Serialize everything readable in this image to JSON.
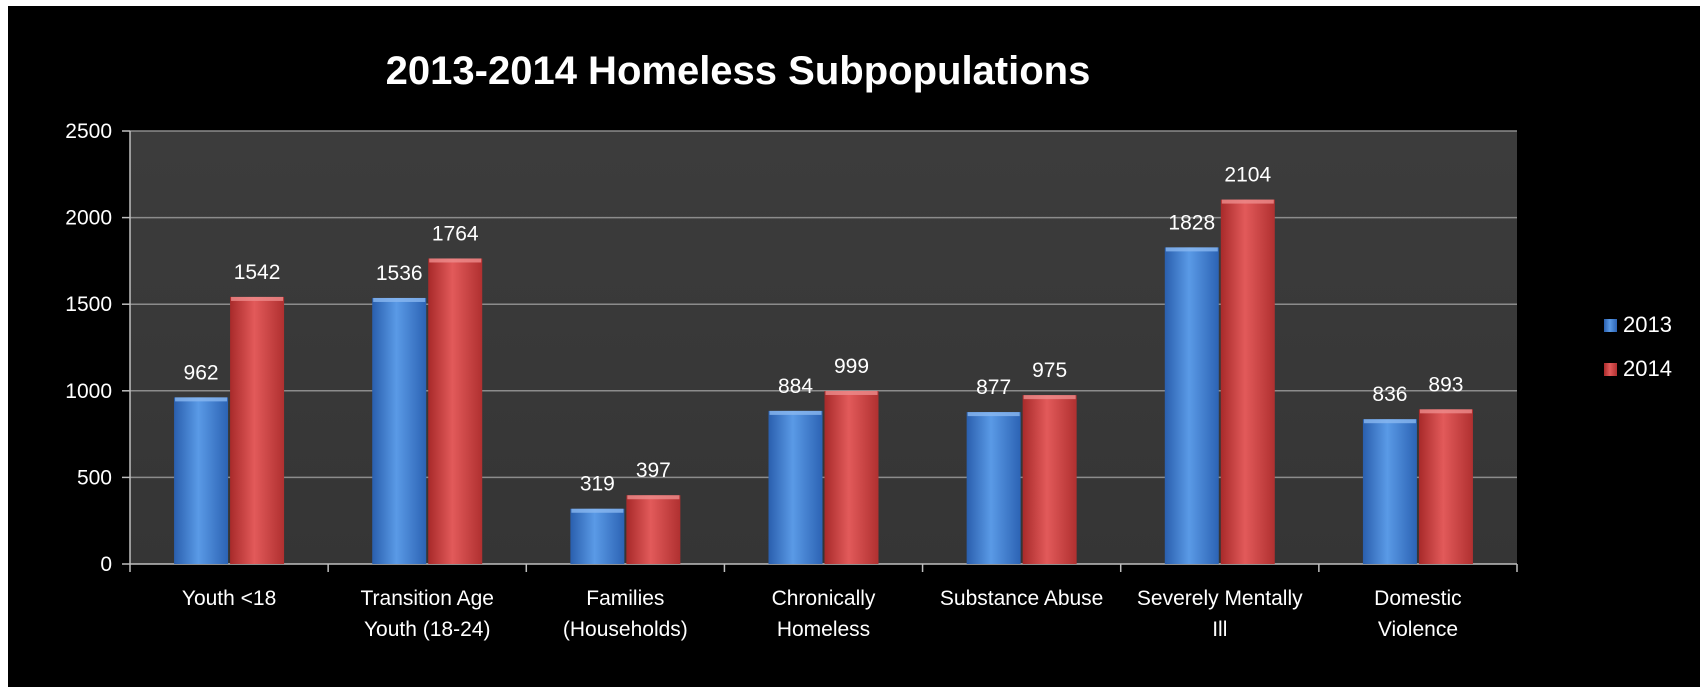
{
  "chart_data": {
    "type": "bar",
    "title": "2013-2014 Homeless Subpopulations",
    "xlabel": "",
    "ylabel": "",
    "ylim": [
      0,
      2500
    ],
    "yticks": [
      "0",
      "500",
      "1000",
      "1500",
      "2000",
      "2500"
    ],
    "grid": true,
    "legend_position": "right",
    "categories": [
      [
        "Youth <18"
      ],
      [
        "Transition Age",
        "Youth (18-24)"
      ],
      [
        "Families",
        "(Households)"
      ],
      [
        "Chronically",
        "Homeless"
      ],
      [
        "Substance Abuse"
      ],
      [
        "Severely Mentally",
        "Ill"
      ],
      [
        "Domestic",
        "Violence"
      ]
    ],
    "series": [
      {
        "name": "2013",
        "color": "#4a86d8",
        "values": [
          962,
          1536,
          319,
          884,
          877,
          1828,
          836
        ]
      },
      {
        "name": "2014",
        "color": "#d64545",
        "values": [
          1542,
          1764,
          397,
          999,
          975,
          2104,
          893
        ]
      }
    ]
  },
  "colors": {
    "background": "#000000",
    "plot_area": "#3a3a3a",
    "gridline": "#8c8c8c",
    "text": "#ffffff"
  }
}
